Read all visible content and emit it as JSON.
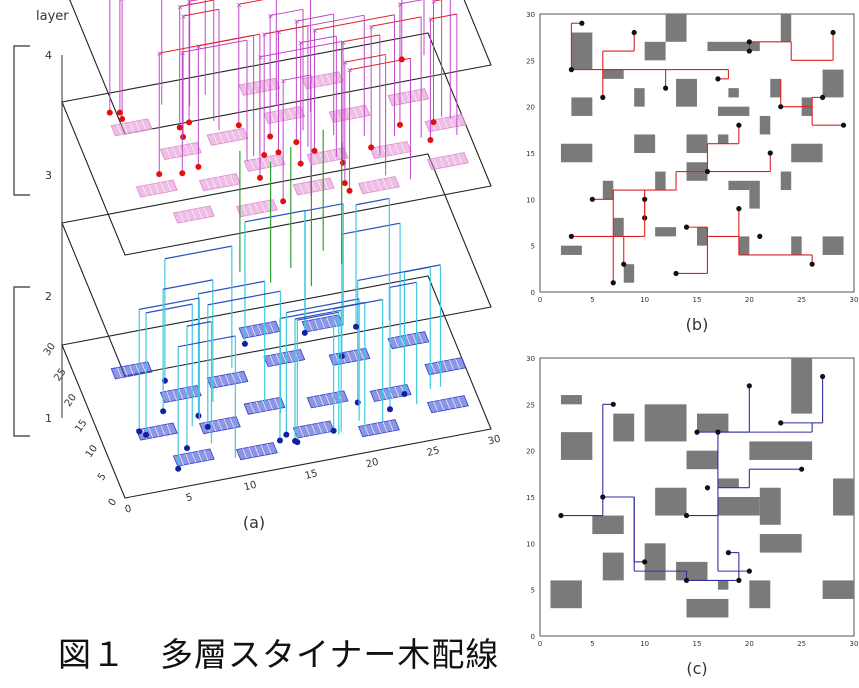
{
  "layer_axis_label": "layer",
  "layer_ticks": [
    "1",
    "2",
    "3",
    "4"
  ],
  "axis_3d_y_ticks": [
    "30",
    "25",
    "20",
    "15",
    "10",
    "5",
    "0"
  ],
  "axis_3d_x_ticks": [
    "0",
    "5",
    "10",
    "15",
    "20",
    "25",
    "30"
  ],
  "panel_a_label": "(a)",
  "panel_b_label": "(b)",
  "panel_c_label": "(c)",
  "caption": "図１　多層スタイナー木配線",
  "colors": {
    "magenta_wire": "#c048c8",
    "red_wire": "#e02020",
    "red_node": "#e01010",
    "cyan_wire": "#40c8e0",
    "blue_node": "#1020a0",
    "blue_pad": "#3040d0",
    "pink_pad": "#e088d0",
    "green_via": "#30a030",
    "obstacle": "#7a7a7a",
    "blue_wire": "#3030a0"
  },
  "panel_b": {
    "axis_ticks_x": [
      "0",
      "5",
      "10",
      "15",
      "20",
      "25",
      "30"
    ],
    "axis_ticks_y": [
      "0",
      "5",
      "10",
      "15",
      "20",
      "25",
      "30"
    ],
    "obstacles": [
      [
        3,
        24,
        2,
        4
      ],
      [
        6,
        23,
        2,
        1
      ],
      [
        10,
        25,
        2,
        2
      ],
      [
        12,
        27,
        2,
        3
      ],
      [
        16,
        26,
        5,
        1
      ],
      [
        23,
        27,
        1,
        3
      ],
      [
        3,
        19,
        2,
        2
      ],
      [
        9,
        20,
        1,
        2
      ],
      [
        13,
        20,
        2,
        3
      ],
      [
        18,
        21,
        1,
        1
      ],
      [
        17,
        19,
        3,
        1
      ],
      [
        22,
        21,
        1,
        2
      ],
      [
        25,
        19,
        1,
        2
      ],
      [
        27,
        21,
        2,
        3
      ],
      [
        2,
        14,
        3,
        2
      ],
      [
        9,
        15,
        2,
        2
      ],
      [
        14,
        15,
        2,
        2
      ],
      [
        17,
        16,
        1,
        1
      ],
      [
        21,
        17,
        1,
        2
      ],
      [
        24,
        14,
        3,
        2
      ],
      [
        6,
        10,
        1,
        2
      ],
      [
        11,
        11,
        1,
        2
      ],
      [
        14,
        12,
        2,
        2
      ],
      [
        18,
        11,
        2,
        1
      ],
      [
        20,
        9,
        1,
        3
      ],
      [
        23,
        11,
        1,
        2
      ],
      [
        2,
        4,
        2,
        1
      ],
      [
        7,
        6,
        1,
        2
      ],
      [
        11,
        6,
        2,
        1
      ],
      [
        15,
        5,
        1,
        2
      ],
      [
        19,
        4,
        1,
        2
      ],
      [
        24,
        4,
        1,
        2
      ],
      [
        27,
        4,
        2,
        2
      ],
      [
        8,
        1,
        1,
        2
      ]
    ],
    "nets": [
      {
        "segments": [
          [
            [
              3,
              24
            ],
            [
              3,
              29
            ]
          ],
          [
            [
              3,
              29
            ],
            [
              4,
              29
            ]
          ],
          [
            [
              3,
              24
            ],
            [
              6,
              24
            ]
          ],
          [
            [
              6,
              24
            ],
            [
              6,
              26
            ]
          ],
          [
            [
              6,
              24
            ],
            [
              6,
              21
            ]
          ],
          [
            [
              6,
              26
            ],
            [
              9,
              26
            ]
          ],
          [
            [
              9,
              26
            ],
            [
              9,
              28
            ]
          ],
          [
            [
              6,
              24
            ],
            [
              12,
              24
            ]
          ],
          [
            [
              12,
              24
            ],
            [
              12,
              22
            ]
          ],
          [
            [
              12,
              24
            ],
            [
              18,
              24
            ]
          ],
          [
            [
              18,
              24
            ],
            [
              18,
              23
            ]
          ],
          [
            [
              18,
              23
            ],
            [
              17,
              23
            ]
          ]
        ],
        "pins": [
          [
            3,
            24
          ],
          [
            4,
            29
          ],
          [
            6,
            21
          ],
          [
            9,
            28
          ],
          [
            12,
            22
          ],
          [
            17,
            23
          ]
        ]
      },
      {
        "segments": [
          [
            [
              20,
              27
            ],
            [
              24,
              27
            ]
          ],
          [
            [
              24,
              27
            ],
            [
              24,
              25
            ]
          ],
          [
            [
              24,
              25
            ],
            [
              28,
              25
            ]
          ],
          [
            [
              28,
              25
            ],
            [
              28,
              28
            ]
          ],
          [
            [
              20,
              27
            ],
            [
              20,
              26
            ]
          ]
        ],
        "pins": [
          [
            20,
            27
          ],
          [
            28,
            28
          ],
          [
            20,
            26
          ]
        ]
      },
      {
        "segments": [
          [
            [
              23,
              23
            ],
            [
              23,
              20
            ]
          ],
          [
            [
              23,
              20
            ],
            [
              26,
              20
            ]
          ],
          [
            [
              26,
              20
            ],
            [
              26,
              18
            ]
          ],
          [
            [
              26,
              18
            ],
            [
              29,
              18
            ]
          ],
          [
            [
              26,
              20
            ],
            [
              26,
              21
            ]
          ],
          [
            [
              26,
              21
            ],
            [
              27,
              21
            ]
          ]
        ],
        "pins": [
          [
            23,
            20
          ],
          [
            29,
            18
          ],
          [
            27,
            21
          ]
        ]
      },
      {
        "segments": [
          [
            [
              7,
              11
            ],
            [
              7,
              1
            ]
          ],
          [
            [
              7,
              11
            ],
            [
              10,
              11
            ]
          ],
          [
            [
              10,
              11
            ],
            [
              10,
              8
            ]
          ],
          [
            [
              10,
              11
            ],
            [
              13,
              11
            ]
          ],
          [
            [
              13,
              11
            ],
            [
              13,
              13
            ]
          ],
          [
            [
              13,
              13
            ],
            [
              16,
              13
            ]
          ],
          [
            [
              16,
              13
            ],
            [
              16,
              16
            ]
          ],
          [
            [
              16,
              16
            ],
            [
              19,
              16
            ]
          ],
          [
            [
              19,
              16
            ],
            [
              19,
              18
            ]
          ],
          [
            [
              16,
              13
            ],
            [
              22,
              13
            ]
          ],
          [
            [
              22,
              13
            ],
            [
              22,
              15
            ]
          ],
          [
            [
              7,
              11
            ],
            [
              7,
              10
            ]
          ],
          [
            [
              7,
              10
            ],
            [
              5,
              10
            ]
          ]
        ],
        "pins": [
          [
            7,
            1
          ],
          [
            10,
            8
          ],
          [
            5,
            10
          ],
          [
            19,
            18
          ],
          [
            22,
            15
          ],
          [
            16,
            13
          ]
        ]
      },
      {
        "segments": [
          [
            [
              3,
              6
            ],
            [
              8,
              6
            ]
          ],
          [
            [
              8,
              6
            ],
            [
              8,
              3
            ]
          ],
          [
            [
              8,
              6
            ],
            [
              10,
              6
            ]
          ],
          [
            [
              10,
              6
            ],
            [
              10,
              10
            ]
          ]
        ],
        "pins": [
          [
            3,
            6
          ],
          [
            8,
            3
          ],
          [
            10,
            10
          ]
        ]
      },
      {
        "segments": [
          [
            [
              13,
              2
            ],
            [
              16,
              2
            ]
          ],
          [
            [
              16,
              2
            ],
            [
              16,
              6
            ]
          ],
          [
            [
              16,
              6
            ],
            [
              19,
              6
            ]
          ],
          [
            [
              19,
              6
            ],
            [
              19,
              4
            ]
          ],
          [
            [
              19,
              4
            ],
            [
              26,
              4
            ]
          ],
          [
            [
              26,
              4
            ],
            [
              26,
              3
            ]
          ],
          [
            [
              19,
              6
            ],
            [
              19,
              9
            ]
          ],
          [
            [
              16,
              6
            ],
            [
              16,
              7
            ]
          ],
          [
            [
              16,
              7
            ],
            [
              14,
              7
            ]
          ]
        ],
        "pins": [
          [
            13,
            2
          ],
          [
            26,
            3
          ],
          [
            19,
            9
          ],
          [
            14,
            7
          ],
          [
            21,
            6
          ]
        ]
      }
    ]
  },
  "panel_c": {
    "axis_ticks_x": [
      "0",
      "5",
      "10",
      "15",
      "20",
      "25",
      "30"
    ],
    "axis_ticks_y": [
      "0",
      "5",
      "10",
      "15",
      "20",
      "25",
      "30"
    ],
    "obstacles": [
      [
        2,
        25,
        2,
        1
      ],
      [
        7,
        21,
        2,
        3
      ],
      [
        10,
        21,
        4,
        4
      ],
      [
        2,
        19,
        3,
        3
      ],
      [
        5,
        11,
        3,
        2
      ],
      [
        15,
        22,
        3,
        2
      ],
      [
        24,
        24,
        2,
        6
      ],
      [
        14,
        18,
        3,
        2
      ],
      [
        20,
        19,
        6,
        2
      ],
      [
        17,
        16,
        2,
        1
      ],
      [
        11,
        13,
        3,
        3
      ],
      [
        17,
        13,
        4,
        2
      ],
      [
        21,
        12,
        2,
        4
      ],
      [
        28,
        13,
        2,
        4
      ],
      [
        6,
        6,
        2,
        3
      ],
      [
        10,
        6,
        2,
        4
      ],
      [
        13,
        6,
        3,
        2
      ],
      [
        21,
        9,
        4,
        2
      ],
      [
        17,
        5,
        1,
        1
      ],
      [
        20,
        3,
        2,
        3
      ],
      [
        1,
        3,
        3,
        3
      ],
      [
        14,
        2,
        4,
        2
      ],
      [
        27,
        4,
        3,
        2
      ]
    ],
    "nets": [
      {
        "segments": [
          [
            [
              2,
              13
            ],
            [
              6,
              13
            ]
          ],
          [
            [
              6,
              13
            ],
            [
              6,
              15
            ]
          ],
          [
            [
              6,
              15
            ],
            [
              6,
              25
            ]
          ],
          [
            [
              6,
              25
            ],
            [
              7,
              25
            ]
          ],
          [
            [
              6,
              15
            ],
            [
              9,
              15
            ]
          ],
          [
            [
              9,
              15
            ],
            [
              9,
              8
            ]
          ],
          [
            [
              9,
              8
            ],
            [
              10,
              8
            ]
          ],
          [
            [
              9,
              15
            ],
            [
              9,
              7
            ]
          ],
          [
            [
              9,
              7
            ],
            [
              14,
              7
            ]
          ],
          [
            [
              14,
              7
            ],
            [
              14,
              6
            ]
          ],
          [
            [
              14,
              6
            ],
            [
              19,
              6
            ]
          ],
          [
            [
              19,
              6
            ],
            [
              19,
              9
            ]
          ],
          [
            [
              19,
              9
            ],
            [
              18,
              9
            ]
          ]
        ],
        "pins": [
          [
            2,
            13
          ],
          [
            7,
            25
          ],
          [
            6,
            15
          ],
          [
            10,
            8
          ],
          [
            14,
            6
          ],
          [
            19,
            6
          ],
          [
            18,
            9
          ]
        ]
      },
      {
        "segments": [
          [
            [
              15,
              22
            ],
            [
              20,
              22
            ]
          ],
          [
            [
              20,
              22
            ],
            [
              20,
              27
            ]
          ],
          [
            [
              20,
              22
            ],
            [
              26,
              22
            ]
          ],
          [
            [
              26,
              22
            ],
            [
              26,
              23
            ]
          ],
          [
            [
              26,
              23
            ],
            [
              27,
              23
            ]
          ],
          [
            [
              27,
              23
            ],
            [
              27,
              28
            ]
          ],
          [
            [
              26,
              23
            ],
            [
              23,
              23
            ]
          ],
          [
            [
              20,
              22
            ],
            [
              17,
              22
            ]
          ],
          [
            [
              17,
              22
            ],
            [
              17,
              16
            ]
          ],
          [
            [
              17,
              16
            ],
            [
              17,
              13
            ]
          ],
          [
            [
              17,
              13
            ],
            [
              14,
              13
            ]
          ],
          [
            [
              17,
              16
            ],
            [
              20,
              16
            ]
          ],
          [
            [
              20,
              16
            ],
            [
              20,
              18
            ]
          ],
          [
            [
              20,
              18
            ],
            [
              25,
              18
            ]
          ],
          [
            [
              17,
              13
            ],
            [
              17,
              7
            ]
          ],
          [
            [
              17,
              7
            ],
            [
              20,
              7
            ]
          ]
        ],
        "pins": [
          [
            15,
            22
          ],
          [
            20,
            27
          ],
          [
            27,
            28
          ],
          [
            23,
            23
          ],
          [
            14,
            13
          ],
          [
            25,
            18
          ],
          [
            20,
            7
          ],
          [
            17,
            22
          ],
          [
            16,
            16
          ]
        ]
      }
    ]
  }
}
